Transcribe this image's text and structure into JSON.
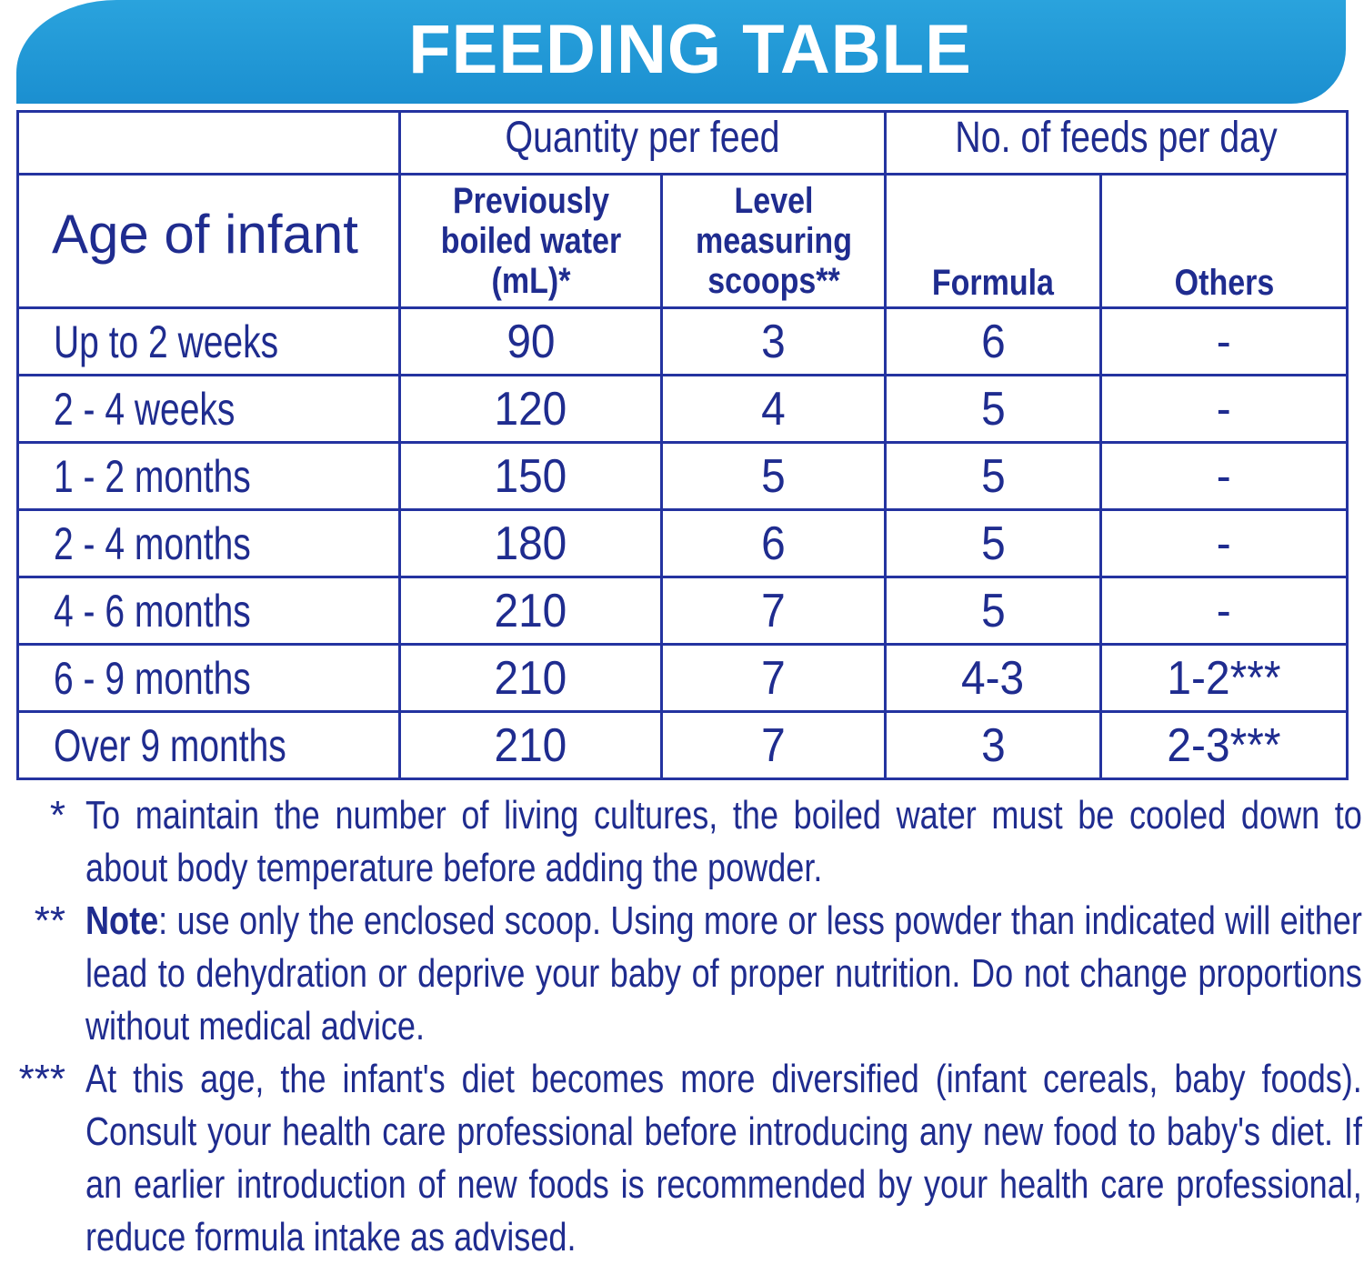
{
  "banner": {
    "title": "FEEDING TABLE"
  },
  "colors": {
    "banner_blue": "#1b8fd0",
    "text_navy": "#1f2c8f",
    "border_navy": "#2433a0"
  },
  "table": {
    "group_headers": {
      "quantity": "Quantity per feed",
      "feeds": "No. of feeds per day"
    },
    "columns": {
      "age": "Age of infant",
      "water": "Previously boiled water (mL)*",
      "scoops": "Level measuring scoops**",
      "formula": "Formula",
      "others": "Others"
    },
    "rows": [
      {
        "age": "Up to 2 weeks",
        "water": "90",
        "scoops": "3",
        "formula": "6",
        "others": "-"
      },
      {
        "age": "2 - 4 weeks",
        "water": "120",
        "scoops": "4",
        "formula": "5",
        "others": "-"
      },
      {
        "age": "1 - 2 months",
        "water": "150",
        "scoops": "5",
        "formula": "5",
        "others": "-"
      },
      {
        "age": "2 - 4 months",
        "water": "180",
        "scoops": "6",
        "formula": "5",
        "others": "-"
      },
      {
        "age": "4 - 6 months",
        "water": "210",
        "scoops": "7",
        "formula": "5",
        "others": "-"
      },
      {
        "age": "6 - 9 months",
        "water": "210",
        "scoops": "7",
        "formula": "4-3",
        "others": "1-2***"
      },
      {
        "age": "Over 9 months",
        "water": "210",
        "scoops": "7",
        "formula": "3",
        "others": "2-3***"
      }
    ]
  },
  "notes": {
    "note1": {
      "mark": "*",
      "text": "To maintain the number of living cultures, the boiled water must be cooled down to about body temperature before adding the powder."
    },
    "note2": {
      "mark": "**",
      "label": "Note",
      "text": ": use only the enclosed scoop. Using more or less powder than indicated will either lead to dehydration or deprive your baby of proper nutrition. Do not change proportions without medical advice."
    },
    "note3": {
      "mark": "***",
      "text": "At this age, the infant's diet becomes more diversified (infant cereals, baby foods). Consult your health care professional before introducing any new food to baby's diet. If an earlier introduction of new foods is recommended by your health care professional, reduce formula intake as advised."
    }
  }
}
